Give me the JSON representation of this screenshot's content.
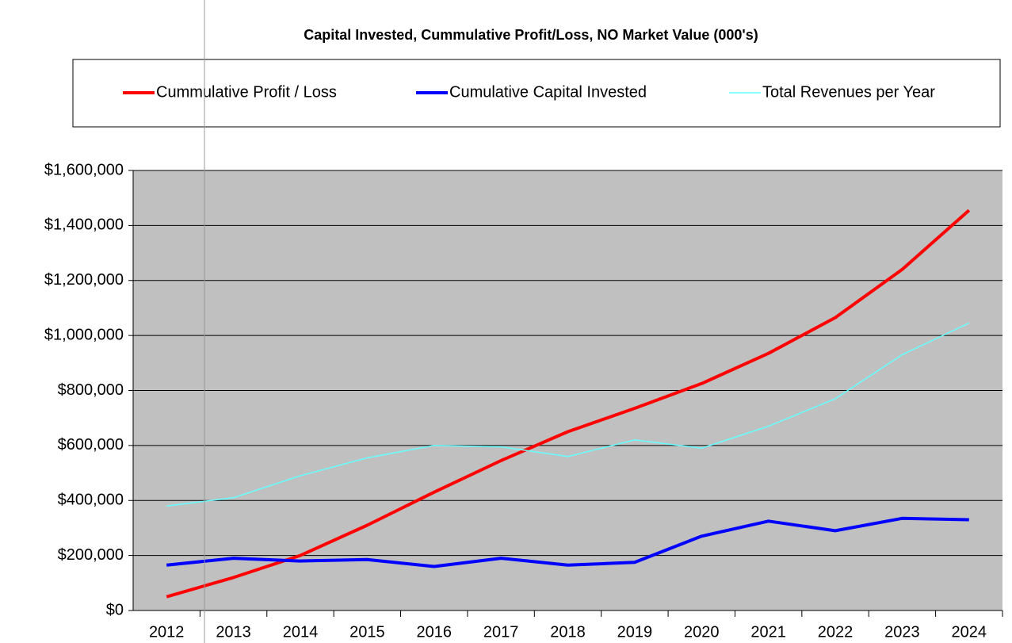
{
  "chart_data": {
    "type": "line",
    "title": "Capital Invested, Cummulative Profit/Loss, NO Market Value (000's)",
    "categories": [
      "2012",
      "2013",
      "2014",
      "2015",
      "2016",
      "2017",
      "2018",
      "2019",
      "2020",
      "2021",
      "2022",
      "2023",
      "2024"
    ],
    "series": [
      {
        "name": "Cummulative Profit / Loss",
        "color": "#ff0000",
        "values": [
          50000,
          120000,
          200000,
          310000,
          430000,
          545000,
          650000,
          735000,
          825000,
          935000,
          1065000,
          1240000,
          1455000
        ]
      },
      {
        "name": "Cumulative Capital Invested",
        "color": "#0000ff",
        "values": [
          165000,
          190000,
          180000,
          185000,
          160000,
          190000,
          165000,
          175000,
          270000,
          325000,
          290000,
          335000,
          330000
        ]
      },
      {
        "name": "Total Revenues per Year",
        "color": "#66ffff",
        "values": [
          380000,
          410000,
          490000,
          555000,
          600000,
          595000,
          560000,
          620000,
          590000,
          670000,
          770000,
          930000,
          1045000
        ]
      }
    ],
    "ylim": [
      0,
      1600000
    ],
    "yticks": [
      {
        "value": 0,
        "label": "$0"
      },
      {
        "value": 200000,
        "label": "$200,000"
      },
      {
        "value": 400000,
        "label": "$400,000"
      },
      {
        "value": 600000,
        "label": "$600,000"
      },
      {
        "value": 800000,
        "label": "$800,000"
      },
      {
        "value": 1000000,
        "label": "$1,000,000"
      },
      {
        "value": 1200000,
        "label": "$1,200,000"
      },
      {
        "value": 1400000,
        "label": "$1,400,000"
      },
      {
        "value": 1600000,
        "label": "$1,600,000"
      }
    ],
    "grid": true,
    "legend": "top"
  }
}
